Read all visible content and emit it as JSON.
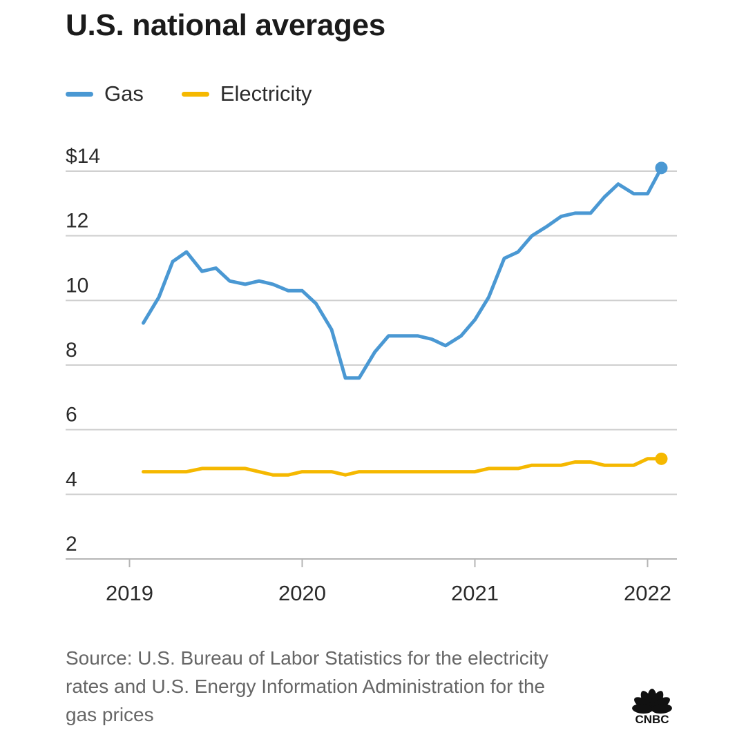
{
  "title": "U.S. national averages",
  "legend": [
    {
      "label": "Gas",
      "color": "#4a98d3"
    },
    {
      "label": "Electricity",
      "color": "#f5b800"
    }
  ],
  "source": "Source: U.S. Bureau of Labor Statistics for the electricity rates and U.S. Energy Information Administration for the gas prices",
  "logo_text": "CNBC",
  "chart_data": {
    "type": "line",
    "title": "U.S. national averages",
    "xlabel": "",
    "ylabel": "",
    "y_tick_labels": [
      "2",
      "4",
      "6",
      "8",
      "10",
      "12",
      "$14"
    ],
    "y_ticks": [
      2,
      4,
      6,
      8,
      10,
      12,
      14
    ],
    "ylim": [
      2,
      14
    ],
    "x_tick_labels": [
      "2019",
      "2020",
      "2021",
      "2022"
    ],
    "x_ticks": [
      2019,
      2020,
      2021,
      2022
    ],
    "xlim": [
      2018.63,
      2022.17
    ],
    "grid": true,
    "legend_position": "top-left",
    "series": [
      {
        "name": "Gas",
        "color": "#4a98d3",
        "x": [
          2019.08,
          2019.17,
          2019.25,
          2019.33,
          2019.42,
          2019.5,
          2019.58,
          2019.67,
          2019.75,
          2019.83,
          2019.92,
          2020.0,
          2020.08,
          2020.17,
          2020.25,
          2020.33,
          2020.42,
          2020.5,
          2020.58,
          2020.67,
          2020.75,
          2020.83,
          2020.92,
          2021.0,
          2021.08,
          2021.17,
          2021.25,
          2021.33,
          2021.42,
          2021.5,
          2021.58,
          2021.67,
          2021.75,
          2021.83,
          2021.92,
          2022.0,
          2022.08
        ],
        "values": [
          9.3,
          10.1,
          11.2,
          11.5,
          10.9,
          11.0,
          10.6,
          10.5,
          10.6,
          10.5,
          10.3,
          10.3,
          9.9,
          9.1,
          7.6,
          7.6,
          8.4,
          8.9,
          8.9,
          8.9,
          8.8,
          8.6,
          8.9,
          9.4,
          10.1,
          11.3,
          11.5,
          12.0,
          12.3,
          12.6,
          12.7,
          12.7,
          13.2,
          13.6,
          13.3,
          13.3,
          14.1
        ]
      },
      {
        "name": "Electricity",
        "color": "#f5b800",
        "x": [
          2019.08,
          2019.17,
          2019.25,
          2019.33,
          2019.42,
          2019.5,
          2019.58,
          2019.67,
          2019.75,
          2019.83,
          2019.92,
          2020.0,
          2020.08,
          2020.17,
          2020.25,
          2020.33,
          2020.42,
          2020.5,
          2020.58,
          2020.67,
          2020.75,
          2020.83,
          2020.92,
          2021.0,
          2021.08,
          2021.17,
          2021.25,
          2021.33,
          2021.42,
          2021.5,
          2021.58,
          2021.67,
          2021.75,
          2021.83,
          2021.92,
          2022.0,
          2022.08
        ],
        "values": [
          4.7,
          4.7,
          4.7,
          4.7,
          4.8,
          4.8,
          4.8,
          4.8,
          4.7,
          4.6,
          4.6,
          4.7,
          4.7,
          4.7,
          4.6,
          4.7,
          4.7,
          4.7,
          4.7,
          4.7,
          4.7,
          4.7,
          4.7,
          4.7,
          4.8,
          4.8,
          4.8,
          4.9,
          4.9,
          4.9,
          5.0,
          5.0,
          4.9,
          4.9,
          4.9,
          5.1,
          5.1
        ]
      }
    ]
  }
}
